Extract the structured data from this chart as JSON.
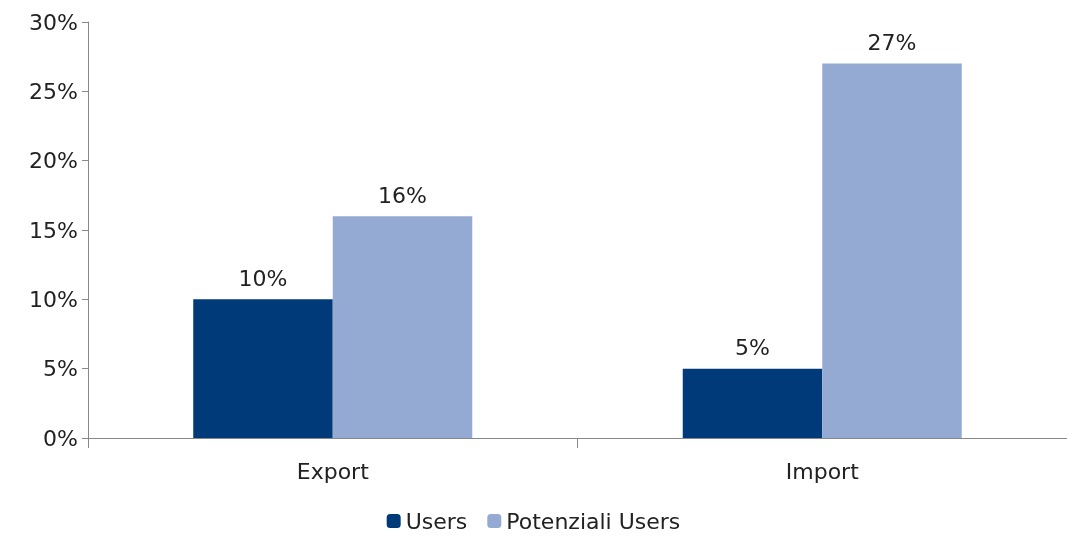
{
  "chart_data": {
    "type": "bar",
    "categories": [
      "Export",
      "Import"
    ],
    "series": [
      {
        "name": "Users",
        "color": "#003a78",
        "values": [
          10,
          5
        ],
        "value_labels": [
          "10%",
          "5%"
        ]
      },
      {
        "name": "Potenziali Users",
        "color": "#95aad3",
        "values": [
          16,
          27
        ],
        "value_labels": [
          "16%",
          "27%"
        ]
      }
    ],
    "ylim": [
      0,
      30
    ],
    "yticks": [
      {
        "value": 0,
        "label": "0%"
      },
      {
        "value": 5,
        "label": "5%"
      },
      {
        "value": 10,
        "label": "10%"
      },
      {
        "value": 15,
        "label": "15%"
      },
      {
        "value": 20,
        "label": "20%"
      },
      {
        "value": 25,
        "label": "25%"
      },
      {
        "value": 30,
        "label": "30%"
      }
    ],
    "grid": false,
    "legend": "bottom"
  }
}
